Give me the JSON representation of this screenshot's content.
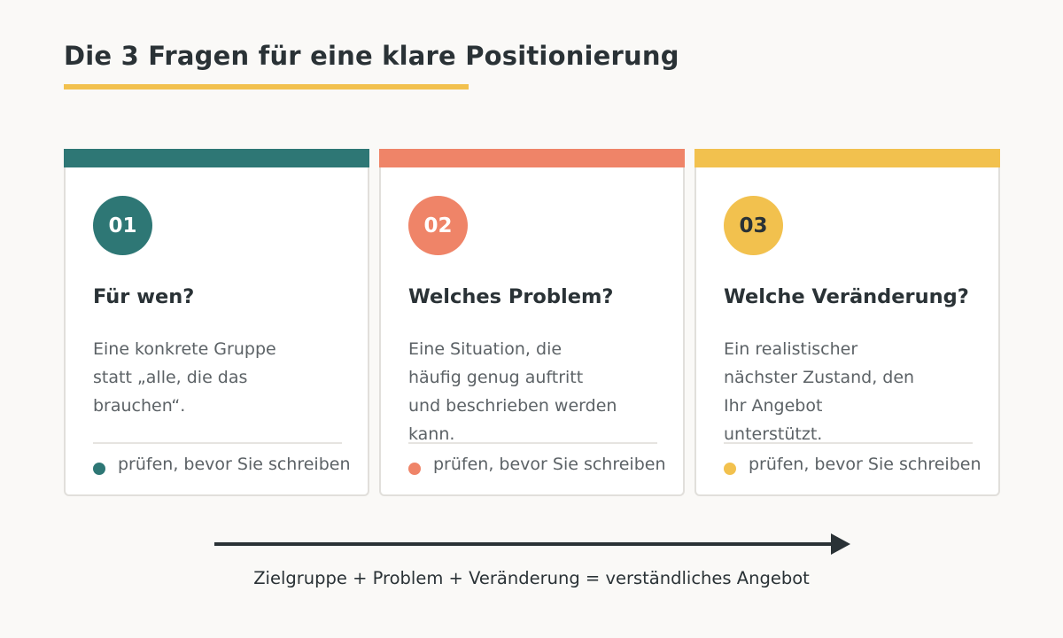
{
  "title": "Die 3 Fragen für eine klare Positionierung",
  "colors": {
    "background": "#faf9f7",
    "text": "#2a3236",
    "teal": "#2e7775",
    "coral": "#ef8468",
    "yellow": "#f2c14e"
  },
  "cards": [
    {
      "number": "01",
      "title": "Für wen?",
      "body_lines": [
        "Eine konkrete Gruppe",
        "statt „alle, die das",
        "brauchen“."
      ],
      "check_label": "prüfen, bevor Sie schreiben",
      "accent": "#2e7775",
      "number_color": "#ffffff"
    },
    {
      "number": "02",
      "title": "Welches Problem?",
      "body_lines": [
        "Eine Situation, die",
        "häufig genug auftritt",
        "und beschrieben werden",
        "kann."
      ],
      "check_label": "prüfen, bevor Sie schreiben",
      "accent": "#ef8468",
      "number_color": "#ffffff"
    },
    {
      "number": "03",
      "title": "Welche Veränderung?",
      "body_lines": [
        "Ein realistischer",
        "nächster Zustand, den",
        "Ihr Angebot",
        "unterstützt."
      ],
      "check_label": "prüfen, bevor Sie schreiben",
      "accent": "#f2c14e",
      "number_color": "#2a3236"
    }
  ],
  "formula": "Zielgruppe + Problem + Veränderung = verständliches Angebot"
}
